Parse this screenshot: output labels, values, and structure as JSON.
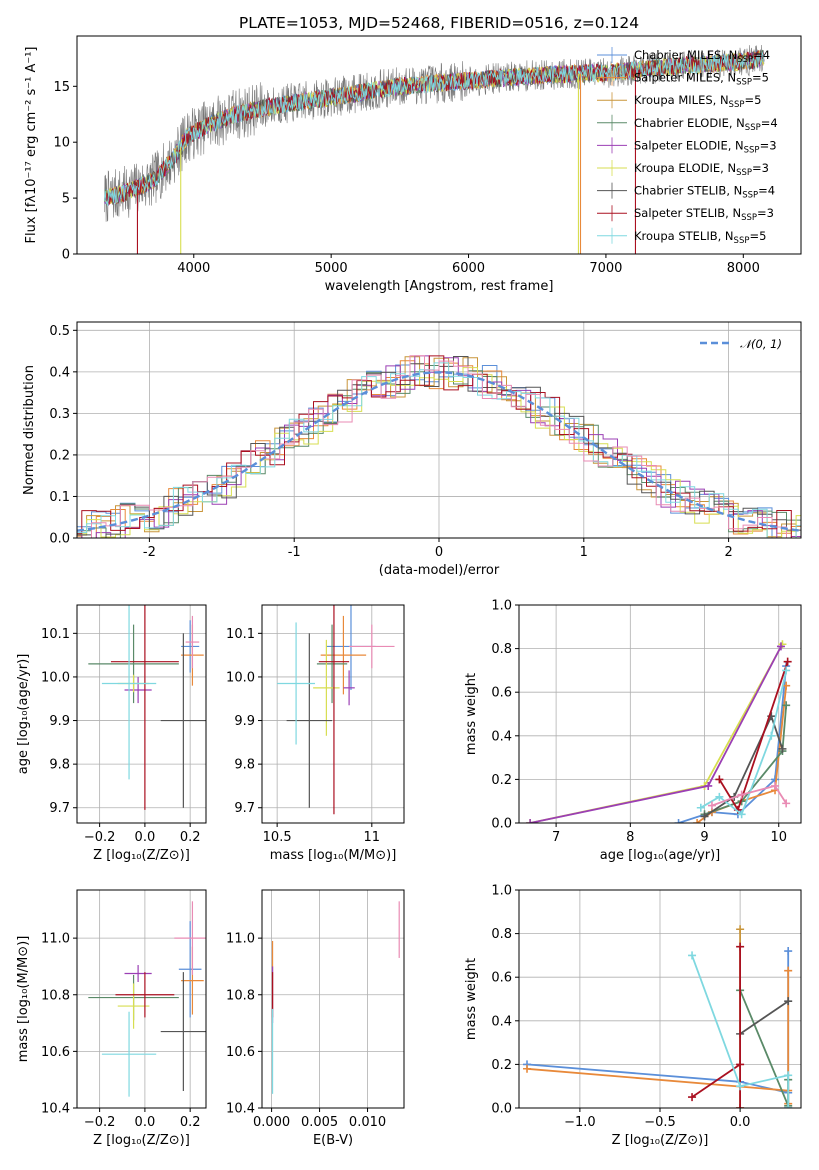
{
  "colors": {
    "chabrier_miles": "#5b8fd9",
    "salpeter_miles": "#e8893a",
    "kroupa_miles": "#c9953a",
    "chabrier_elodie": "#5a8a68",
    "salpeter_elodie": "#9b3fb4",
    "kroupa_elodie": "#d7de50",
    "chabrier_stelib": "#555555",
    "salpeter_stelib": "#aa1020",
    "kroupa_stelib": "#7fd8e0",
    "pink": "#e98bb4",
    "gaussian": "#5b8fd9"
  },
  "chart_data": [
    {
      "id": "spectrum",
      "type": "line",
      "title": "PLATE=1053, MJD=52468, FIBERID=0516, z=0.124",
      "xlabel": "wavelength [Angstrom, rest frame]",
      "ylabel": "Flux [fλ10⁻¹⁷ erg cm⁻² s⁻¹ A⁻¹]",
      "xlim": [
        3150,
        8420
      ],
      "ylim": [
        0,
        19.5
      ],
      "xticks": [
        4000,
        5000,
        6000,
        7000,
        8000
      ],
      "yticks": [
        0,
        5,
        10,
        15
      ],
      "grid": false,
      "legend_position": "upper-right",
      "legend": [
        {
          "label": "Chabrier MILES, N",
          "sub": "SSP",
          "suffix": "=4",
          "color_key": "chabrier_miles"
        },
        {
          "label": "Salpeter MILES, N",
          "sub": "SSP",
          "suffix": "=5",
          "color_key": "salpeter_miles"
        },
        {
          "label": "Kroupa MILES, N",
          "sub": "SSP",
          "suffix": "=5",
          "color_key": "kroupa_miles"
        },
        {
          "label": "Chabrier ELODIE, N",
          "sub": "SSP",
          "suffix": "=4",
          "color_key": "chabrier_elodie"
        },
        {
          "label": "Salpeter ELODIE, N",
          "sub": "SSP",
          "suffix": "=3",
          "color_key": "salpeter_elodie"
        },
        {
          "label": "Kroupa ELODIE, N",
          "sub": "SSP",
          "suffix": "=3",
          "color_key": "kroupa_elodie"
        },
        {
          "label": "Chabrier STELIB, N",
          "sub": "SSP",
          "suffix": "=4",
          "color_key": "chabrier_stelib"
        },
        {
          "label": "Salpeter STELIB, N",
          "sub": "SSP",
          "suffix": "=3",
          "color_key": "salpeter_stelib"
        },
        {
          "label": "Kroupa STELIB, N",
          "sub": "SSP",
          "suffix": "=5",
          "color_key": "kroupa_stelib"
        }
      ],
      "continuum": [
        [
          3350,
          5.0
        ],
        [
          3500,
          5.5
        ],
        [
          3700,
          6.5
        ],
        [
          3850,
          8.5
        ],
        [
          3950,
          10.5
        ],
        [
          4100,
          11.5
        ],
        [
          4300,
          12.5
        ],
        [
          4600,
          13.3
        ],
        [
          5000,
          14.0
        ],
        [
          5500,
          15.0
        ],
        [
          6000,
          15.5
        ],
        [
          6500,
          16.0
        ],
        [
          7000,
          16.2
        ],
        [
          7500,
          16.8
        ],
        [
          8000,
          17.2
        ],
        [
          8150,
          17.5
        ]
      ],
      "dips": [
        {
          "x": 3590,
          "depth_to": 0,
          "color_key": "salpeter_stelib"
        },
        {
          "x": 3905,
          "depth_to": 0,
          "color_key": "kroupa_elodie"
        },
        {
          "x": 6800,
          "depth_to": 0,
          "color_key": "kroupa_elodie"
        },
        {
          "x": 7215,
          "depth_to": 0,
          "color_key": "salpeter_stelib"
        },
        {
          "x": 6815,
          "depth_to": 0,
          "color_key": "salpeter_miles"
        }
      ]
    },
    {
      "id": "residuals",
      "type": "histogram",
      "xlabel": "(data-model)/error",
      "ylabel": "Normed distribution",
      "xlim": [
        -2.5,
        2.5
      ],
      "ylim": [
        0,
        0.52
      ],
      "xticks": [
        -2,
        -1,
        0,
        1,
        2
      ],
      "yticks": [
        0.0,
        0.1,
        0.2,
        0.3,
        0.4,
        0.5
      ],
      "grid": true,
      "legend_position": "upper-right",
      "legend": [
        {
          "label": "𝒩(0, 1)",
          "color_key": "gaussian",
          "style": "dashed"
        }
      ],
      "bin_width": 0.1
    },
    {
      "id": "age_vs_Z",
      "type": "errorbar",
      "xlabel": "Z [log₁₀(Z/Z⊙)]",
      "ylabel": "age  [log₁₀(age/yr)]",
      "xlim": [
        -0.3,
        0.27
      ],
      "ylim": [
        9.665,
        10.165
      ],
      "xticks": [
        -0.2,
        0.0,
        0.2
      ],
      "xticklabels": [
        "−0.2",
        "0.0",
        "0.2"
      ],
      "yticks": [
        9.7,
        9.8,
        9.9,
        10.0,
        10.1
      ],
      "grid": true,
      "points": [
        {
          "x": 0.2,
          "y": 10.07,
          "xerr": 0.04,
          "yerr": 0.06,
          "color_key": "chabrier_miles"
        },
        {
          "x": 0.21,
          "y": 10.05,
          "xerr": 0.05,
          "yerr": 0.07,
          "color_key": "salpeter_miles"
        },
        {
          "x": 0.21,
          "y": 10.08,
          "xerr": 0.03,
          "yerr": 0.06,
          "color_key": "pink"
        },
        {
          "x": -0.05,
          "y": 10.03,
          "xerr": 0.2,
          "yerr": 0.09,
          "color_key": "chabrier_elodie"
        },
        {
          "x": -0.03,
          "y": 9.97,
          "xerr": 0.06,
          "yerr": 0.03,
          "color_key": "salpeter_elodie"
        },
        {
          "x": -0.05,
          "y": 9.985,
          "xerr": 0.07,
          "yerr": 0.02,
          "color_key": "kroupa_elodie"
        },
        {
          "x": 0.17,
          "y": 9.9,
          "xerr": 0.1,
          "yerr": 0.2,
          "color_key": "chabrier_stelib"
        },
        {
          "x": 0.0,
          "y": 10.035,
          "xerr": 0.15,
          "yerr": 0.34,
          "color_key": "salpeter_stelib"
        },
        {
          "x": -0.07,
          "y": 9.985,
          "xerr": 0.12,
          "yerr": 0.22,
          "color_key": "kroupa_stelib"
        }
      ]
    },
    {
      "id": "age_vs_mass",
      "type": "errorbar",
      "xlabel": "mass [log₁₀(M/M⊙)]",
      "ylabel": "",
      "xlim": [
        10.42,
        11.17
      ],
      "ylim": [
        9.665,
        10.165
      ],
      "xticks": [
        10.5,
        11.0
      ],
      "yticks": [
        9.7,
        9.8,
        9.9,
        10.0,
        10.1
      ],
      "grid": true,
      "points": [
        {
          "x": 10.89,
          "y": 10.07,
          "xerr": 0.13,
          "yerr": 0.1,
          "color_key": "chabrier_miles"
        },
        {
          "x": 10.85,
          "y": 10.05,
          "xerr": 0.12,
          "yerr": 0.09,
          "color_key": "salpeter_miles"
        },
        {
          "x": 11.0,
          "y": 10.07,
          "xerr": 0.12,
          "yerr": 0.05,
          "color_key": "pink"
        },
        {
          "x": 10.79,
          "y": 10.03,
          "xerr": 0.08,
          "yerr": 0.09,
          "color_key": "chabrier_elodie"
        },
        {
          "x": 10.88,
          "y": 9.975,
          "xerr": 0.03,
          "yerr": 0.04,
          "color_key": "salpeter_elodie"
        },
        {
          "x": 10.76,
          "y": 9.975,
          "xerr": 0.07,
          "yerr": 0.11,
          "color_key": "kroupa_elodie"
        },
        {
          "x": 10.67,
          "y": 9.9,
          "xerr": 0.12,
          "yerr": 0.2,
          "color_key": "chabrier_stelib"
        },
        {
          "x": 10.8,
          "y": 10.035,
          "xerr": 0.08,
          "yerr": 0.35,
          "color_key": "salpeter_stelib"
        },
        {
          "x": 10.6,
          "y": 9.985,
          "xerr": 0.1,
          "yerr": 0.14,
          "color_key": "kroupa_stelib"
        }
      ]
    },
    {
      "id": "weight_vs_age",
      "type": "line",
      "xlabel": "age  [log₁₀(age/yr)]",
      "ylabel": "mass weight",
      "xlim": [
        6.5,
        10.3
      ],
      "ylim": [
        0.0,
        1.0
      ],
      "xticks": [
        7,
        8,
        9,
        10
      ],
      "yticks": [
        0.0,
        0.2,
        0.4,
        0.6,
        0.8,
        1.0
      ],
      "grid": true,
      "series": [
        {
          "color_key": "kroupa_elodie",
          "x": [
            6.65,
            9.0,
            10.05
          ],
          "y": [
            0.0,
            0.17,
            0.82
          ]
        },
        {
          "color_key": "salpeter_elodie",
          "x": [
            6.65,
            9.05,
            10.03
          ],
          "y": [
            0.0,
            0.17,
            0.81
          ]
        },
        {
          "color_key": "chabrier_miles",
          "x": [
            8.65,
            9.1,
            9.45,
            9.95,
            10.1
          ],
          "y": [
            0.0,
            0.05,
            0.04,
            0.2,
            0.72
          ]
        },
        {
          "color_key": "salpeter_miles",
          "x": [
            8.9,
            9.1,
            9.5,
            9.95,
            10.1
          ],
          "y": [
            0.0,
            0.05,
            0.1,
            0.15,
            0.63
          ]
        },
        {
          "color_key": "chabrier_elodie",
          "x": [
            9.0,
            9.5,
            10.05,
            10.1
          ],
          "y": [
            0.04,
            0.1,
            0.33,
            0.54
          ]
        },
        {
          "color_key": "chabrier_stelib",
          "x": [
            9.0,
            9.4,
            9.9,
            10.05
          ],
          "y": [
            0.03,
            0.12,
            0.49,
            0.34
          ]
        },
        {
          "color_key": "salpeter_stelib",
          "x": [
            9.2,
            9.45,
            10.12
          ],
          "y": [
            0.2,
            0.06,
            0.74
          ]
        },
        {
          "color_key": "kroupa_stelib",
          "x": [
            8.95,
            9.2,
            9.5,
            9.9,
            10.1
          ],
          "y": [
            0.07,
            0.12,
            0.04,
            0.4,
            0.7
          ]
        },
        {
          "color_key": "pink",
          "x": [
            9.1,
            9.5,
            9.95,
            10.1
          ],
          "y": [
            0.08,
            0.13,
            0.17,
            0.09
          ]
        }
      ]
    },
    {
      "id": "mass_vs_Z",
      "type": "errorbar",
      "xlabel": "Z [log₁₀(Z/Z⊙)]",
      "ylabel": "mass [log₁₀(M/M⊙)]",
      "xlim": [
        -0.3,
        0.27
      ],
      "ylim": [
        10.4,
        11.17
      ],
      "xticks": [
        -0.2,
        0.0,
        0.2
      ],
      "xticklabels": [
        "−0.2",
        "0.0",
        "0.2"
      ],
      "yticks": [
        10.4,
        10.6,
        10.8,
        11.0
      ],
      "grid": true,
      "points": [
        {
          "x": 0.2,
          "y": 10.89,
          "xerr": 0.05,
          "yerr": 0.17,
          "color_key": "chabrier_miles"
        },
        {
          "x": 0.21,
          "y": 10.85,
          "xerr": 0.05,
          "yerr": 0.12,
          "color_key": "salpeter_miles"
        },
        {
          "x": 0.21,
          "y": 11.0,
          "xerr": 0.08,
          "yerr": 0.13,
          "color_key": "pink"
        },
        {
          "x": -0.05,
          "y": 10.79,
          "xerr": 0.2,
          "yerr": 0.08,
          "color_key": "chabrier_elodie"
        },
        {
          "x": -0.03,
          "y": 10.875,
          "xerr": 0.06,
          "yerr": 0.03,
          "color_key": "salpeter_elodie"
        },
        {
          "x": -0.05,
          "y": 10.76,
          "xerr": 0.07,
          "yerr": 0.08,
          "color_key": "kroupa_elodie"
        },
        {
          "x": 0.17,
          "y": 10.67,
          "xerr": 0.1,
          "yerr": 0.21,
          "color_key": "chabrier_stelib"
        },
        {
          "x": 0.0,
          "y": 10.8,
          "xerr": 0.13,
          "yerr": 0.08,
          "color_key": "salpeter_stelib"
        },
        {
          "x": -0.07,
          "y": 10.59,
          "xerr": 0.12,
          "yerr": 0.15,
          "color_key": "kroupa_stelib"
        }
      ]
    },
    {
      "id": "mass_vs_EBV",
      "type": "errorbar",
      "xlabel": "E(B-V)",
      "ylabel": "",
      "xlim": [
        -0.001,
        0.0138
      ],
      "ylim": [
        10.4,
        11.17
      ],
      "xticks": [
        0.0,
        0.005,
        0.01
      ],
      "xticklabels": [
        "0.000",
        "0.005",
        "0.010"
      ],
      "yticks": [
        10.4,
        10.6,
        10.8,
        11.0
      ],
      "grid": true,
      "points": [
        {
          "x": 0.0001,
          "y": 10.87,
          "xerr": 0.0,
          "yerr": 0.12,
          "color_key": "salpeter_miles"
        },
        {
          "x": 0.0001,
          "y": 10.8,
          "xerr": 0.0,
          "yerr": 0.1,
          "color_key": "salpeter_elodie"
        },
        {
          "x": 0.0001,
          "y": 10.8,
          "xerr": 0.0,
          "yerr": 0.08,
          "color_key": "salpeter_stelib"
        },
        {
          "x": 0.0001,
          "y": 10.6,
          "xerr": 0.0,
          "yerr": 0.15,
          "color_key": "kroupa_stelib"
        },
        {
          "x": 0.0133,
          "y": 11.03,
          "xerr": 0.0,
          "yerr": 0.1,
          "color_key": "pink"
        }
      ]
    },
    {
      "id": "weight_vs_Z",
      "type": "line",
      "xlabel": "Z [log₁₀(Z/Z⊙)]",
      "ylabel": "mass weight",
      "xlim": [
        -1.38,
        0.38
      ],
      "ylim": [
        0.0,
        1.0
      ],
      "xticks": [
        -1.0,
        -0.5,
        0.0
      ],
      "xticklabels": [
        "−1.0",
        "−0.5",
        "0.0"
      ],
      "yticks": [
        0.0,
        0.2,
        0.4,
        0.6,
        0.8,
        1.0
      ],
      "grid": true,
      "series": [
        {
          "color_key": "chabrier_miles",
          "x": [
            -1.33,
            0.0,
            0.3,
            0.3,
            0.3
          ],
          "y": [
            0.2,
            0.12,
            0.07,
            0.72,
            0.0
          ]
        },
        {
          "color_key": "salpeter_miles",
          "x": [
            -1.33,
            0.3,
            0.3,
            0.3
          ],
          "y": [
            0.18,
            0.08,
            0.63,
            0.02
          ]
        },
        {
          "color_key": "kroupa_miles",
          "x": [
            0.0,
            0.0
          ],
          "y": [
            0.82,
            0.0
          ]
        },
        {
          "color_key": "chabrier_elodie",
          "x": [
            0.0,
            0.3,
            0.3
          ],
          "y": [
            0.54,
            0.01,
            0.13
          ]
        },
        {
          "color_key": "chabrier_stelib",
          "x": [
            0.0,
            0.3
          ],
          "y": [
            0.34,
            0.49
          ]
        },
        {
          "color_key": "salpeter_stelib",
          "x": [
            -0.3,
            0.0,
            0.0,
            0.0
          ],
          "y": [
            0.05,
            0.2,
            0.74,
            0.0
          ]
        },
        {
          "color_key": "kroupa_stelib",
          "x": [
            -0.3,
            0.0,
            0.3,
            0.3
          ],
          "y": [
            0.7,
            0.1,
            0.15,
            0.0
          ]
        }
      ]
    }
  ]
}
